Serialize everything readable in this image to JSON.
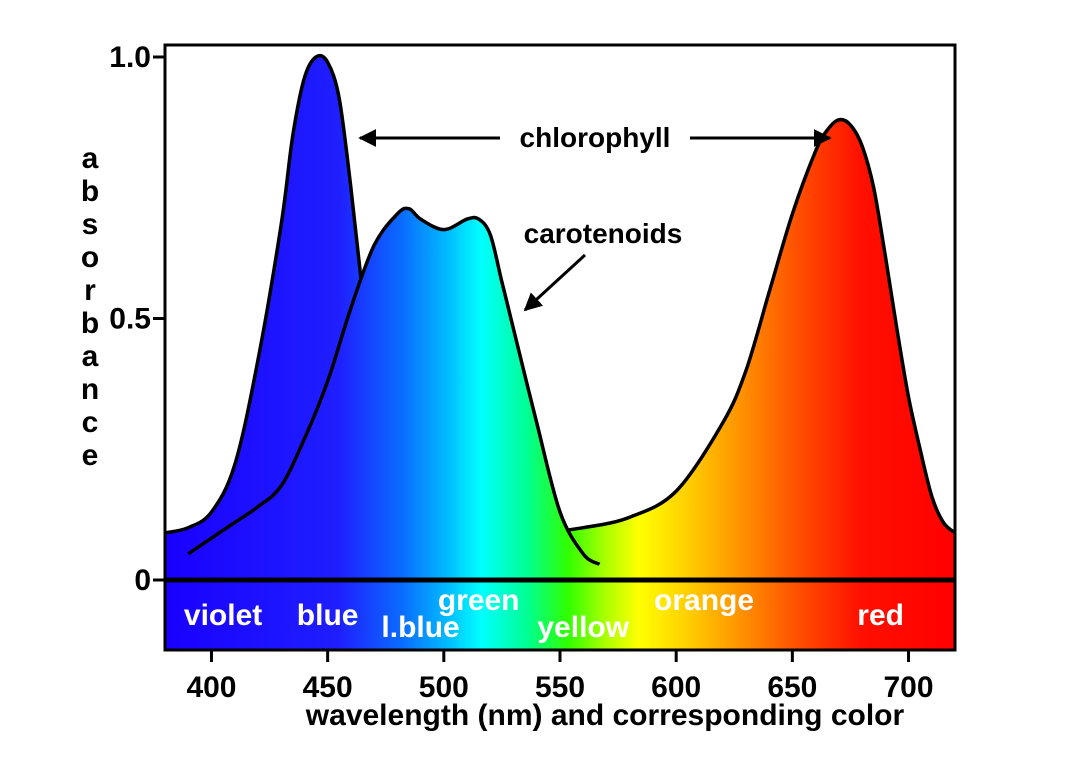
{
  "chart_data": {
    "type": "area",
    "title": "",
    "xlabel": "wavelength (nm) and corresponding color",
    "ylabel": "absorbance",
    "xlim": [
      380,
      720
    ],
    "ylim": [
      0,
      1.0
    ],
    "x_ticks": [
      "400",
      "450",
      "500",
      "550",
      "600",
      "650",
      "700"
    ],
    "y_ticks": [
      "0",
      "0.5",
      "1.0"
    ],
    "grid": false,
    "color_bands": [
      {
        "label": "violet",
        "x": 405
      },
      {
        "label": "blue",
        "x": 450
      },
      {
        "label": "l.blue",
        "x": 490
      },
      {
        "label": "green",
        "x": 515
      },
      {
        "label": "yellow",
        "x": 560
      },
      {
        "label": "orange",
        "x": 612
      },
      {
        "label": "red",
        "x": 688
      }
    ],
    "annotations": [
      {
        "text": "chlorophyll"
      },
      {
        "text": "carotenoids"
      }
    ],
    "series": [
      {
        "name": "chlorophyll",
        "x": [
          380,
          390,
          400,
          410,
          420,
          430,
          435,
          440,
          445,
          450,
          455,
          460,
          465,
          470,
          475,
          480,
          485,
          490,
          500,
          520,
          540,
          560,
          580,
          600,
          620,
          630,
          640,
          650,
          660,
          665,
          670,
          675,
          680,
          685,
          690,
          695,
          700,
          705,
          710,
          715,
          720
        ],
        "y": [
          0.09,
          0.1,
          0.13,
          0.22,
          0.42,
          0.68,
          0.85,
          0.96,
          1.0,
          0.99,
          0.92,
          0.75,
          0.55,
          0.38,
          0.25,
          0.17,
          0.14,
          0.12,
          0.1,
          0.09,
          0.09,
          0.1,
          0.12,
          0.17,
          0.3,
          0.4,
          0.55,
          0.7,
          0.82,
          0.86,
          0.88,
          0.87,
          0.83,
          0.75,
          0.62,
          0.48,
          0.35,
          0.25,
          0.16,
          0.11,
          0.09
        ]
      },
      {
        "name": "carotenoids",
        "x": [
          390,
          400,
          410,
          420,
          430,
          440,
          450,
          460,
          470,
          480,
          485,
          490,
          500,
          510,
          515,
          520,
          525,
          530,
          540,
          550,
          560,
          567
        ],
        "y": [
          0.05,
          0.08,
          0.11,
          0.14,
          0.18,
          0.27,
          0.38,
          0.52,
          0.64,
          0.7,
          0.71,
          0.69,
          0.67,
          0.69,
          0.69,
          0.66,
          0.57,
          0.48,
          0.3,
          0.13,
          0.05,
          0.03
        ]
      }
    ]
  }
}
